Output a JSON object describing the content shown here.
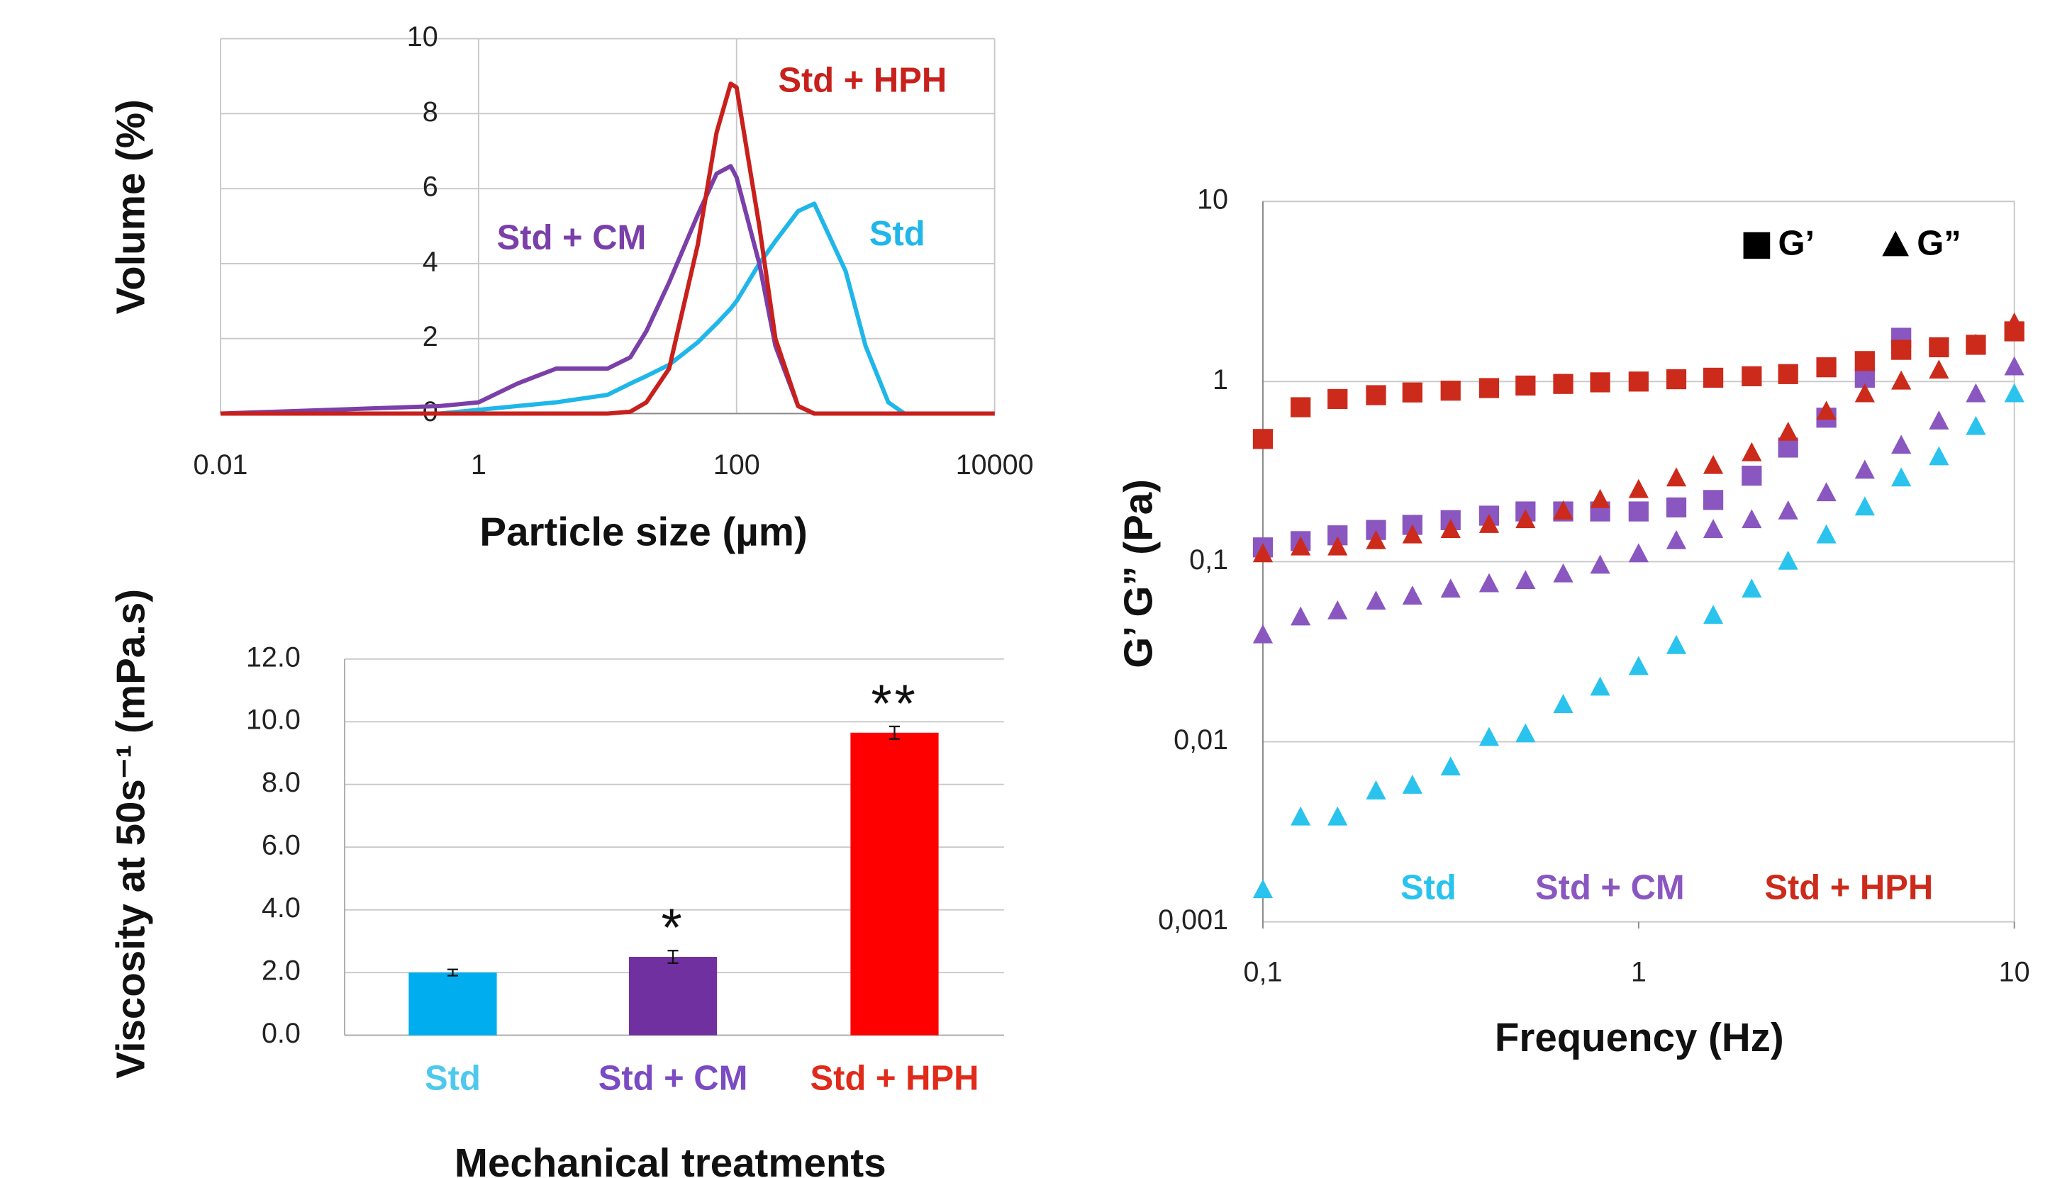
{
  "chart_data": [
    {
      "type": "line",
      "xlabel": "Particle size (µm)",
      "ylabel": "Volume (%)",
      "log_x": true,
      "xlim": [
        0.01,
        10000
      ],
      "xticks": [
        0.01,
        1,
        100,
        10000
      ],
      "ylim": [
        0,
        10
      ],
      "yticks": [
        0,
        2,
        4,
        6,
        8,
        10
      ],
      "grid": true,
      "x": [
        0.01,
        0.5,
        1,
        2,
        4,
        10,
        15,
        20,
        30,
        50,
        70,
        90,
        100,
        150,
        200,
        300,
        400,
        700,
        1000,
        1500,
        2000,
        10000
      ],
      "series": [
        {
          "name": "Std",
          "color": "#1fb6ea",
          "values": [
            0,
            0,
            0.1,
            0.2,
            0.3,
            0.5,
            0.8,
            1.0,
            1.3,
            1.9,
            2.4,
            2.8,
            3.0,
            4.0,
            4.6,
            5.4,
            5.6,
            3.8,
            1.8,
            0.3,
            0,
            0
          ]
        },
        {
          "name": "Std + CM",
          "color": "#7a3fa8",
          "values": [
            0,
            0.2,
            0.3,
            0.8,
            1.2,
            1.2,
            1.5,
            2.2,
            3.5,
            5.3,
            6.4,
            6.6,
            6.3,
            4.0,
            1.8,
            0.2,
            0,
            0,
            0,
            0,
            0,
            0
          ]
        },
        {
          "name": "Std + HPH",
          "color": "#c8201c",
          "values": [
            0,
            0,
            0,
            0,
            0,
            0,
            0.05,
            0.3,
            1.2,
            4.5,
            7.5,
            8.8,
            8.7,
            5.0,
            2.0,
            0.2,
            0,
            0,
            0,
            0,
            0,
            0
          ]
        }
      ]
    },
    {
      "type": "bar",
      "xlabel": "Mechanical treatments",
      "ylabel": "Viscosity at 50s⁻¹ (mPa.s)",
      "categories": [
        "Std",
        "Std + CM",
        "Std + HPH"
      ],
      "values": [
        2.0,
        2.5,
        9.65
      ],
      "errors": [
        0.1,
        0.2,
        0.2
      ],
      "colors": [
        "#00aeef",
        "#7030a0",
        "#ff0000"
      ],
      "label_colors": [
        "#4fc8ee",
        "#7a4bc2",
        "#e02a1a"
      ],
      "annotations": [
        null,
        "*",
        "**"
      ],
      "ylim": [
        0,
        12
      ],
      "yticks": [
        {
          "value": 0,
          "label": "0.0"
        },
        {
          "value": 2,
          "label": "2.0"
        },
        {
          "value": 4,
          "label": "4.0"
        },
        {
          "value": 6,
          "label": "6.0"
        },
        {
          "value": 8,
          "label": "8.0"
        },
        {
          "value": 10,
          "label": "10.0"
        },
        {
          "value": 12,
          "label": "12.0"
        }
      ],
      "grid": true
    },
    {
      "type": "scatter",
      "xlabel": "Frequency (Hz)",
      "ylabel": "G’ G” (Pa)",
      "log_x": true,
      "log_y": true,
      "xlim": [
        0.1,
        10
      ],
      "xticks": [
        {
          "value": 0.1,
          "label": "0,1"
        },
        1,
        10
      ],
      "ylim": [
        0.001,
        10
      ],
      "yticks": [
        {
          "value": 0.001,
          "label": "0,001"
        },
        {
          "value": 0.01,
          "label": "0,01"
        },
        {
          "value": 0.1,
          "label": "0,1"
        },
        1,
        10
      ],
      "grid": true,
      "groups": [
        {
          "name": "Std",
          "color": "#29c3ee"
        },
        {
          "name": "Std + CM",
          "color": "#8a56c0"
        },
        {
          "name": "Std + HPH",
          "color": "#cc2a1a"
        }
      ],
      "markers": [
        {
          "name": "G’",
          "shape": "square"
        },
        {
          "name": "G”",
          "shape": "triangle"
        }
      ],
      "x": [
        0.1,
        0.126,
        0.158,
        0.2,
        0.25,
        0.316,
        0.4,
        0.5,
        0.63,
        0.79,
        1,
        1.26,
        1.58,
        2,
        2.5,
        3.16,
        4,
        5,
        6.3,
        7.9,
        10
      ],
      "series": [
        {
          "group": 1,
          "marker": 0,
          "values": [
            0.12,
            0.13,
            0.14,
            0.15,
            0.16,
            0.17,
            0.18,
            0.19,
            0.19,
            0.19,
            0.19,
            0.2,
            0.22,
            0.3,
            0.43,
            0.63,
            1.05,
            1.75,
            null,
            null,
            null
          ]
        },
        {
          "group": 2,
          "marker": 0,
          "values": [
            0.48,
            0.72,
            0.8,
            0.84,
            0.87,
            0.89,
            0.92,
            0.95,
            0.97,
            0.99,
            1.0,
            1.03,
            1.05,
            1.07,
            1.1,
            1.2,
            1.3,
            1.5,
            1.55,
            1.6,
            1.9
          ]
        },
        {
          "group": 0,
          "marker": 1,
          "values": [
            0.0015,
            0.0038,
            0.0038,
            0.0053,
            0.0057,
            0.0072,
            0.0105,
            0.011,
            0.016,
            0.02,
            0.026,
            0.034,
            0.05,
            0.07,
            0.1,
            0.14,
            0.2,
            0.29,
            0.38,
            0.56,
            0.85
          ]
        },
        {
          "group": 1,
          "marker": 1,
          "values": [
            0.039,
            0.049,
            0.053,
            0.06,
            0.064,
            0.07,
            0.075,
            0.078,
            0.085,
            0.095,
            0.11,
            0.13,
            0.15,
            0.17,
            0.19,
            0.24,
            0.32,
            0.44,
            0.6,
            0.85,
            1.2
          ]
        },
        {
          "group": 2,
          "marker": 1,
          "values": [
            0.11,
            0.12,
            0.12,
            0.13,
            0.14,
            0.15,
            0.16,
            0.17,
            0.19,
            0.22,
            0.25,
            0.29,
            0.34,
            0.4,
            0.52,
            0.68,
            0.85,
            1.0,
            1.15,
            1.6,
            2.1
          ]
        }
      ]
    }
  ]
}
